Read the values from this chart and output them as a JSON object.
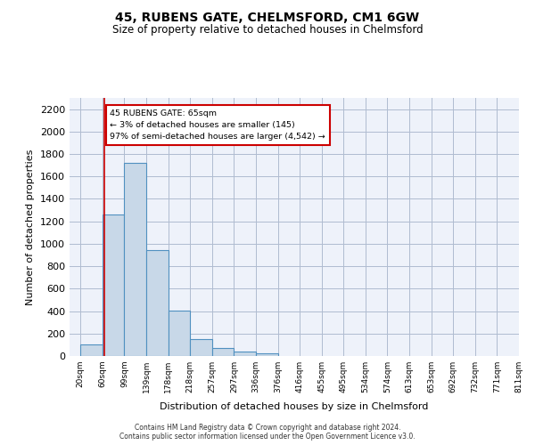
{
  "title1": "45, RUBENS GATE, CHELMSFORD, CM1 6GW",
  "title2": "Size of property relative to detached houses in Chelmsford",
  "xlabel": "Distribution of detached houses by size in Chelmsford",
  "ylabel": "Number of detached properties",
  "footnote": "Contains HM Land Registry data © Crown copyright and database right 2024.\nContains public sector information licensed under the Open Government Licence v3.0.",
  "bin_labels": [
    "20sqm",
    "60sqm",
    "99sqm",
    "139sqm",
    "178sqm",
    "218sqm",
    "257sqm",
    "297sqm",
    "336sqm",
    "376sqm",
    "416sqm",
    "455sqm",
    "495sqm",
    "534sqm",
    "574sqm",
    "613sqm",
    "653sqm",
    "692sqm",
    "732sqm",
    "771sqm",
    "811sqm"
  ],
  "bar_values": [
    105,
    1265,
    1725,
    940,
    405,
    150,
    75,
    42,
    25,
    0,
    0,
    0,
    0,
    0,
    0,
    0,
    0,
    0,
    0,
    0
  ],
  "bar_color": "#c8d8e8",
  "bar_edge_color": "#5090c0",
  "annotation_text": "45 RUBENS GATE: 65sqm\n← 3% of detached houses are smaller (145)\n97% of semi-detached houses are larger (4,542) →",
  "ylim": [
    0,
    2300
  ],
  "yticks": [
    0,
    200,
    400,
    600,
    800,
    1000,
    1200,
    1400,
    1600,
    1800,
    2000,
    2200
  ],
  "red_line_color": "#cc0000",
  "annotation_box_color": "#ffffff",
  "annotation_box_edge": "#cc0000",
  "background_color": "#eef2fa"
}
